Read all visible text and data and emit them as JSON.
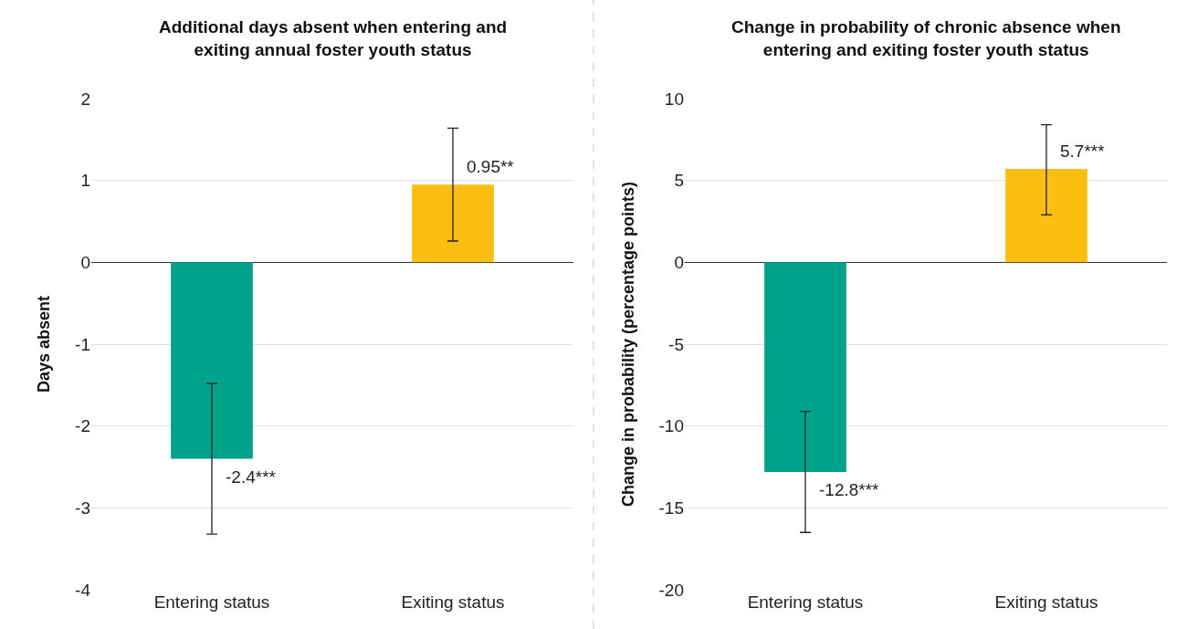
{
  "chart_data": [
    {
      "type": "bar",
      "title": "Additional days absent when entering and\nexiting annual foster youth status",
      "ylabel": "Days absent",
      "categories": [
        "Entering status",
        "Exiting status"
      ],
      "values": [
        -2.4,
        0.95
      ],
      "colors": [
        "#00a389",
        "#fdbe12"
      ],
      "errors": [
        [
          -3.32,
          -1.48
        ],
        [
          0.26,
          1.64
        ]
      ],
      "value_labels": [
        "-2.4***",
        "0.95**"
      ],
      "ylim": [
        -4,
        2
      ],
      "yticks": [
        -4,
        -3,
        -2,
        -1,
        0,
        1,
        2
      ],
      "grid": "y"
    },
    {
      "type": "bar",
      "title": "Change in probability of chronic absence when\nentering and exiting foster youth status",
      "ylabel": "Change in probability (percentage points)",
      "categories": [
        "Entering status",
        "Exiting status"
      ],
      "values": [
        -12.8,
        5.7
      ],
      "colors": [
        "#00a389",
        "#fdbe12"
      ],
      "errors": [
        [
          -16.5,
          -9.1
        ],
        [
          2.9,
          8.4
        ]
      ],
      "value_labels": [
        "-12.8***",
        "5.7***"
      ],
      "ylim": [
        -20,
        10
      ],
      "yticks": [
        -20,
        -15,
        -10,
        -5,
        0,
        5,
        10
      ],
      "grid": "y"
    }
  ]
}
